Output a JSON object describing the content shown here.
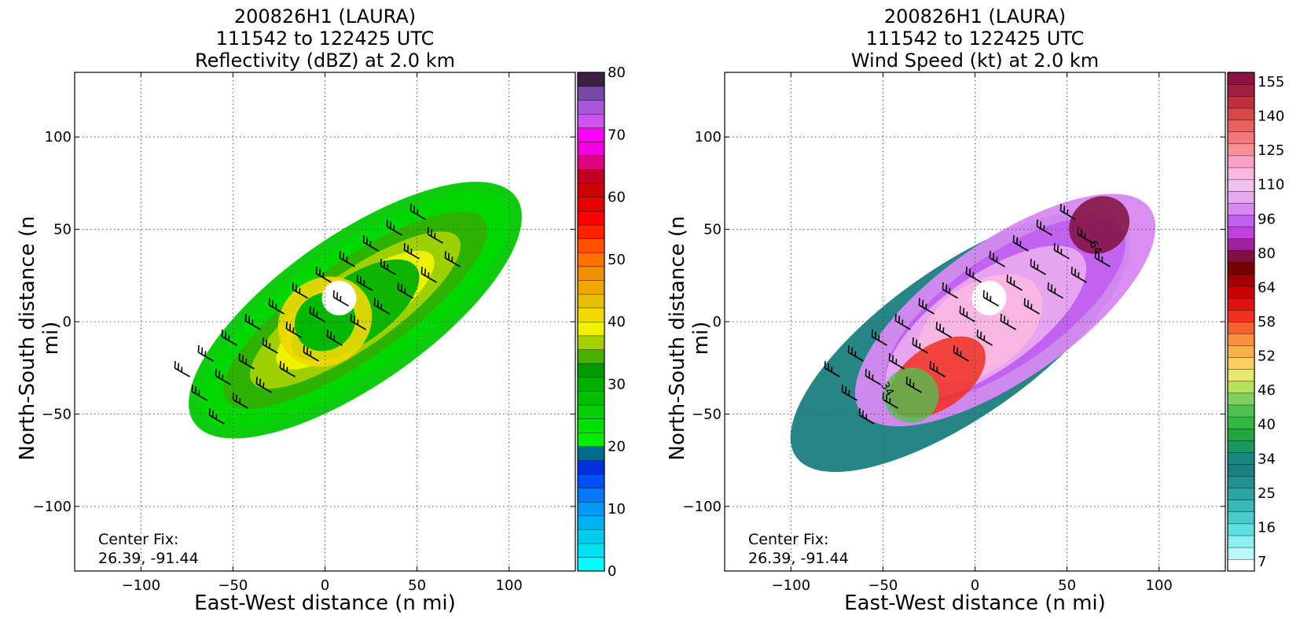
{
  "chart_data": [
    {
      "type": "heatmap",
      "title": [
        "200826H1 (LAURA)",
        "111542 to 122425 UTC",
        "Reflectivity (dBZ) at 2.0 km"
      ],
      "xlabel": "East-West distance (n mi)",
      "ylabel": "North-South distance (n mi)",
      "xlim": [
        -136,
        136
      ],
      "ylim": [
        -135,
        135
      ],
      "xticks": [
        -100,
        -50,
        0,
        50,
        100
      ],
      "yticks": [
        -100,
        -50,
        0,
        50,
        100
      ],
      "grid": true,
      "colorbar": {
        "range": [
          0,
          80
        ],
        "step": 2.5,
        "tick_values": [
          0,
          10,
          20,
          30,
          40,
          50,
          60,
          70,
          80
        ],
        "tick_labels": [
          "0",
          "10",
          "20",
          "30",
          "40",
          "50",
          "60",
          "70",
          "80"
        ],
        "colors": [
          "#00ffff",
          "#00e4f2",
          "#00cbea",
          "#00b2f0",
          "#0099f5",
          "#0078fa",
          "#0050ff",
          "#0030e0",
          "#006c8c",
          "#00ef00",
          "#00e000",
          "#00d000",
          "#00c000",
          "#00b000",
          "#009a00",
          "#4cb000",
          "#a4d200",
          "#f2f200",
          "#f0d800",
          "#e8be00",
          "#f0a800",
          "#f09000",
          "#ff7000",
          "#ff5000",
          "#ff2000",
          "#ff0000",
          "#e60000",
          "#d00000",
          "#c00020",
          "#e00080",
          "#f000e0",
          "#ff00ff",
          "#d050f0",
          "#a858d8",
          "#7848a8",
          "#402040"
        ]
      },
      "center_fix": {
        "label": "Center Fix:",
        "value": "26.39, -91.44"
      }
    },
    {
      "type": "heatmap",
      "title": [
        "200826H1 (LAURA)",
        "111542 to 122425 UTC",
        "Wind Speed (kt) at 2.0 km"
      ],
      "xlabel": "East-West distance (n mi)",
      "ylabel": "North-South distance (n mi)",
      "xlim": [
        -136,
        136
      ],
      "ylim": [
        -135,
        135
      ],
      "xticks": [
        -100,
        -50,
        0,
        50,
        100
      ],
      "yticks": [
        -100,
        -50,
        0,
        50,
        100
      ],
      "grid": true,
      "contour_labels": [
        "34",
        "64"
      ],
      "colorbar": {
        "tick_labels": [
          "7",
          "16",
          "25",
          "34",
          "40",
          "46",
          "52",
          "58",
          "64",
          "80",
          "96",
          "110",
          "125",
          "140",
          "155"
        ],
        "bin_count": 40,
        "colors": [
          "#ffffff",
          "#b8f8f8",
          "#8af0f0",
          "#5ee0e0",
          "#48cccc",
          "#38b8b8",
          "#2aa4a4",
          "#209090",
          "#1a8080",
          "#1a8880",
          "#1a9860",
          "#20a840",
          "#30b840",
          "#50c050",
          "#80d060",
          "#b8e060",
          "#e8e870",
          "#f8d060",
          "#f8b048",
          "#f89040",
          "#f86030",
          "#f03020",
          "#e01010",
          "#c80000",
          "#a00000",
          "#780000",
          "#801040",
          "#a020a0",
          "#c040e0",
          "#c060f0",
          "#d888f0",
          "#e8a8f0",
          "#f0c0f0",
          "#f8b8e0",
          "#f8a0c8",
          "#f89098",
          "#f07878",
          "#e86060",
          "#d84848",
          "#c03040",
          "#a02040",
          "#8c1040"
        ]
      },
      "center_fix": {
        "label": "Center Fix:",
        "value": "26.39, -91.44"
      }
    }
  ]
}
